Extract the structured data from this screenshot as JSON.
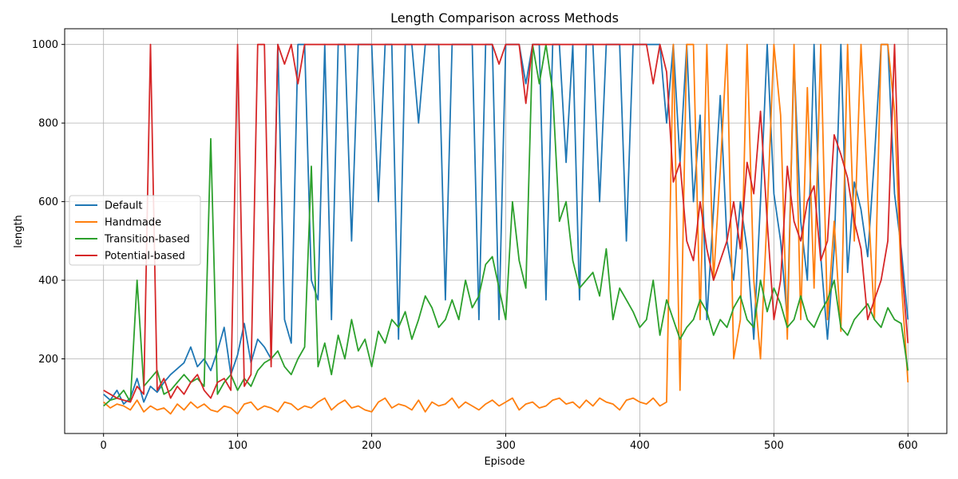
{
  "chart_data": {
    "type": "line",
    "title": "Length Comparison across Methods",
    "xlabel": "Episode",
    "ylabel": "length",
    "xlim": [
      -29,
      629
    ],
    "ylim": [
      10,
      1040
    ],
    "xticks": [
      0,
      100,
      200,
      300,
      400,
      500,
      600
    ],
    "yticks": [
      200,
      400,
      600,
      800,
      1000
    ],
    "grid": true,
    "legend_position": "center-left",
    "colors": {
      "Default": "#1f77b4",
      "Handmade": "#ff7f0e",
      "Transition-based": "#2ca02c",
      "Potential-based": "#d62728"
    },
    "x": {
      "start": 0,
      "end": 600,
      "step": 5
    },
    "series": [
      {
        "name": "Default",
        "values": [
          110,
          95,
          120,
          85,
          100,
          150,
          90,
          130,
          115,
          140,
          160,
          175,
          190,
          230,
          180,
          200,
          170,
          220,
          280,
          160,
          210,
          290,
          190,
          250,
          230,
          200,
          1000,
          300,
          240,
          1000,
          1000,
          400,
          350,
          1000,
          300,
          1000,
          1000,
          500,
          1000,
          1000,
          1000,
          600,
          1000,
          1000,
          250,
          1000,
          1000,
          800,
          1000,
          1000,
          1000,
          350,
          1000,
          1000,
          1000,
          1000,
          300,
          1000,
          1000,
          300,
          1000,
          1000,
          1000,
          900,
          1000,
          1000,
          350,
          1000,
          1000,
          700,
          1000,
          350,
          1000,
          1000,
          600,
          1000,
          1000,
          1000,
          500,
          1000,
          1000,
          1000,
          1000,
          1000,
          800,
          1000,
          700,
          1000,
          600,
          820,
          300,
          580,
          870,
          500,
          400,
          600,
          480,
          250,
          600,
          1000,
          620,
          500,
          300,
          960,
          550,
          400,
          1000,
          460,
          250,
          480,
          1000,
          420,
          650,
          580,
          460,
          710,
          1000,
          1000,
          620,
          480,
          300
        ]
      },
      {
        "name": "Handmade",
        "values": [
          90,
          75,
          85,
          80,
          70,
          95,
          65,
          80,
          70,
          75,
          60,
          85,
          70,
          90,
          75,
          85,
          70,
          65,
          80,
          75,
          60,
          85,
          90,
          70,
          80,
          75,
          65,
          90,
          85,
          70,
          80,
          75,
          90,
          100,
          70,
          85,
          95,
          75,
          80,
          70,
          65,
          90,
          100,
          75,
          85,
          80,
          70,
          95,
          65,
          90,
          80,
          85,
          100,
          75,
          90,
          80,
          70,
          85,
          95,
          80,
          90,
          100,
          70,
          85,
          90,
          75,
          80,
          95,
          100,
          85,
          90,
          75,
          95,
          80,
          100,
          90,
          85,
          70,
          95,
          100,
          90,
          85,
          100,
          80,
          90,
          1000,
          120,
          1000,
          1000,
          300,
          1000,
          400,
          680,
          1000,
          200,
          300,
          1000,
          400,
          200,
          570,
          1000,
          820,
          250,
          1000,
          300,
          890,
          380,
          1000,
          300,
          550,
          270,
          1000,
          500,
          1000,
          620,
          300,
          1000,
          1000,
          830,
          400,
          140
        ]
      },
      {
        "name": "Transition-based",
        "values": [
          80,
          95,
          100,
          120,
          90,
          400,
          130,
          150,
          170,
          110,
          120,
          140,
          160,
          140,
          150,
          130,
          760,
          110,
          140,
          160,
          120,
          150,
          130,
          170,
          190,
          200,
          220,
          180,
          160,
          200,
          230,
          690,
          180,
          240,
          160,
          260,
          200,
          300,
          220,
          250,
          180,
          270,
          240,
          300,
          280,
          320,
          250,
          300,
          360,
          330,
          280,
          300,
          350,
          300,
          400,
          330,
          360,
          440,
          460,
          380,
          300,
          600,
          450,
          380,
          1000,
          900,
          1000,
          880,
          550,
          600,
          450,
          380,
          400,
          420,
          360,
          480,
          300,
          380,
          350,
          320,
          280,
          300,
          400,
          260,
          350,
          300,
          250,
          280,
          300,
          350,
          320,
          260,
          300,
          280,
          330,
          360,
          300,
          280,
          400,
          320,
          380,
          340,
          280,
          300,
          360,
          300,
          280,
          320,
          350,
          400,
          280,
          260,
          300,
          320,
          340,
          300,
          280,
          330,
          300,
          290,
          170
        ]
      },
      {
        "name": "Potential-based",
        "values": [
          120,
          110,
          100,
          95,
          90,
          130,
          110,
          1000,
          120,
          150,
          100,
          130,
          110,
          140,
          160,
          120,
          100,
          140,
          150,
          120,
          1000,
          130,
          160,
          1000,
          1000,
          180,
          1000,
          950,
          1000,
          900,
          1000,
          1000,
          1000,
          1000,
          1000,
          1000,
          1000,
          1000,
          1000,
          1000,
          1000,
          1000,
          1000,
          1000,
          1000,
          1000,
          1000,
          1000,
          1000,
          1000,
          1000,
          1000,
          1000,
          1000,
          1000,
          1000,
          1000,
          1000,
          1000,
          950,
          1000,
          1000,
          1000,
          850,
          1000,
          1000,
          1000,
          1000,
          1000,
          1000,
          1000,
          1000,
          1000,
          1000,
          1000,
          1000,
          1000,
          1000,
          1000,
          1000,
          1000,
          1000,
          900,
          1000,
          930,
          650,
          700,
          500,
          450,
          600,
          480,
          400,
          450,
          500,
          600,
          480,
          700,
          620,
          830,
          550,
          300,
          400,
          690,
          550,
          500,
          600,
          640,
          450,
          500,
          770,
          720,
          660,
          550,
          480,
          300,
          350,
          400,
          500,
          1000,
          450,
          240
        ]
      }
    ]
  }
}
